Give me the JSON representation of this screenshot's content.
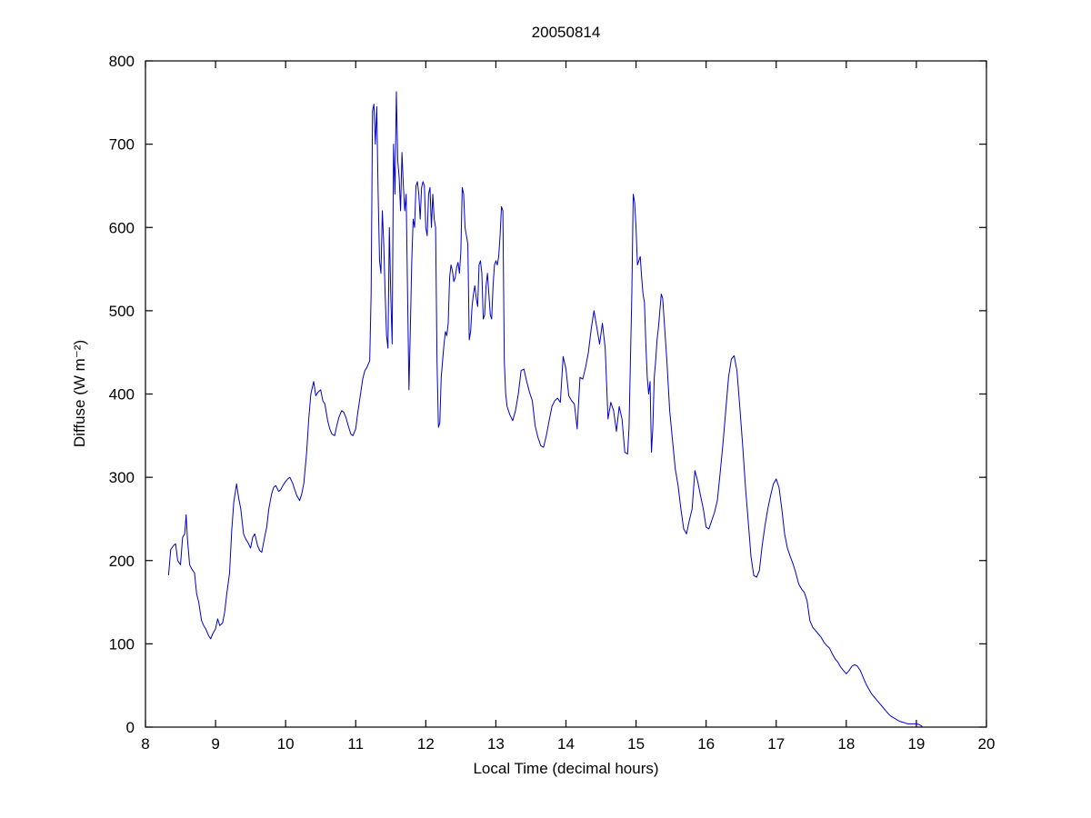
{
  "chart_data": {
    "type": "line",
    "title": "20050814",
    "xlabel": "Local Time (decimal hours)",
    "ylabel": "Diffuse (W m⁻²)",
    "xlim": [
      8,
      20
    ],
    "ylim": [
      0,
      800
    ],
    "xticks": [
      8,
      9,
      10,
      11,
      12,
      13,
      14,
      15,
      16,
      17,
      18,
      19,
      20
    ],
    "yticks": [
      0,
      100,
      200,
      300,
      400,
      500,
      600,
      700,
      800
    ],
    "grid": false,
    "legend": null,
    "line_color": "#0000CD",
    "axis_color": "#000000",
    "points": [
      [
        8.33,
        183
      ],
      [
        8.36,
        213
      ],
      [
        8.4,
        218
      ],
      [
        8.43,
        220
      ],
      [
        8.46,
        200
      ],
      [
        8.5,
        195
      ],
      [
        8.53,
        228
      ],
      [
        8.56,
        232
      ],
      [
        8.58,
        255
      ],
      [
        8.6,
        225
      ],
      [
        8.63,
        195
      ],
      [
        8.66,
        190
      ],
      [
        8.7,
        185
      ],
      [
        8.73,
        160
      ],
      [
        8.76,
        150
      ],
      [
        8.8,
        128
      ],
      [
        8.83,
        122
      ],
      [
        8.86,
        118
      ],
      [
        8.9,
        110
      ],
      [
        8.93,
        106
      ],
      [
        8.96,
        112
      ],
      [
        9.0,
        118
      ],
      [
        9.03,
        130
      ],
      [
        9.06,
        122
      ],
      [
        9.1,
        125
      ],
      [
        9.13,
        138
      ],
      [
        9.16,
        160
      ],
      [
        9.2,
        185
      ],
      [
        9.23,
        235
      ],
      [
        9.26,
        270
      ],
      [
        9.3,
        292
      ],
      [
        9.33,
        275
      ],
      [
        9.36,
        262
      ],
      [
        9.4,
        232
      ],
      [
        9.43,
        226
      ],
      [
        9.46,
        222
      ],
      [
        9.5,
        215
      ],
      [
        9.53,
        228
      ],
      [
        9.56,
        232
      ],
      [
        9.6,
        218
      ],
      [
        9.63,
        212
      ],
      [
        9.66,
        210
      ],
      [
        9.7,
        228
      ],
      [
        9.73,
        240
      ],
      [
        9.76,
        262
      ],
      [
        9.8,
        280
      ],
      [
        9.83,
        288
      ],
      [
        9.86,
        290
      ],
      [
        9.9,
        283
      ],
      [
        9.93,
        285
      ],
      [
        9.96,
        290
      ],
      [
        10.0,
        295
      ],
      [
        10.03,
        298
      ],
      [
        10.06,
        300
      ],
      [
        10.1,
        293
      ],
      [
        10.13,
        285
      ],
      [
        10.16,
        278
      ],
      [
        10.2,
        272
      ],
      [
        10.23,
        280
      ],
      [
        10.26,
        293
      ],
      [
        10.3,
        330
      ],
      [
        10.33,
        370
      ],
      [
        10.36,
        400
      ],
      [
        10.4,
        415
      ],
      [
        10.43,
        398
      ],
      [
        10.46,
        402
      ],
      [
        10.5,
        405
      ],
      [
        10.53,
        392
      ],
      [
        10.56,
        388
      ],
      [
        10.6,
        368
      ],
      [
        10.63,
        358
      ],
      [
        10.66,
        352
      ],
      [
        10.7,
        350
      ],
      [
        10.73,
        362
      ],
      [
        10.76,
        372
      ],
      [
        10.8,
        380
      ],
      [
        10.83,
        378
      ],
      [
        10.86,
        372
      ],
      [
        10.9,
        360
      ],
      [
        10.93,
        352
      ],
      [
        10.96,
        350
      ],
      [
        11.0,
        358
      ],
      [
        11.03,
        378
      ],
      [
        11.06,
        395
      ],
      [
        11.1,
        418
      ],
      [
        11.13,
        428
      ],
      [
        11.16,
        432
      ],
      [
        11.2,
        440
      ],
      [
        11.22,
        520
      ],
      [
        11.24,
        740
      ],
      [
        11.26,
        748
      ],
      [
        11.28,
        700
      ],
      [
        11.3,
        745
      ],
      [
        11.32,
        640
      ],
      [
        11.34,
        560
      ],
      [
        11.36,
        545
      ],
      [
        11.38,
        620
      ],
      [
        11.4,
        580
      ],
      [
        11.42,
        520
      ],
      [
        11.44,
        470
      ],
      [
        11.46,
        455
      ],
      [
        11.48,
        600
      ],
      [
        11.5,
        520
      ],
      [
        11.52,
        460
      ],
      [
        11.54,
        700
      ],
      [
        11.56,
        640
      ],
      [
        11.58,
        763
      ],
      [
        11.6,
        680
      ],
      [
        11.62,
        660
      ],
      [
        11.64,
        620
      ],
      [
        11.66,
        690
      ],
      [
        11.68,
        650
      ],
      [
        11.7,
        620
      ],
      [
        11.72,
        640
      ],
      [
        11.74,
        520
      ],
      [
        11.76,
        405
      ],
      [
        11.78,
        480
      ],
      [
        11.8,
        560
      ],
      [
        11.82,
        610
      ],
      [
        11.84,
        600
      ],
      [
        11.86,
        650
      ],
      [
        11.88,
        655
      ],
      [
        11.9,
        640
      ],
      [
        11.92,
        610
      ],
      [
        11.94,
        648
      ],
      [
        11.96,
        655
      ],
      [
        11.98,
        650
      ],
      [
        12.0,
        600
      ],
      [
        12.02,
        590
      ],
      [
        12.04,
        640
      ],
      [
        12.06,
        648
      ],
      [
        12.08,
        600
      ],
      [
        12.1,
        640
      ],
      [
        12.12,
        610
      ],
      [
        12.14,
        600
      ],
      [
        12.16,
        440
      ],
      [
        12.18,
        360
      ],
      [
        12.2,
        365
      ],
      [
        12.22,
        420
      ],
      [
        12.24,
        440
      ],
      [
        12.26,
        460
      ],
      [
        12.28,
        475
      ],
      [
        12.3,
        470
      ],
      [
        12.32,
        485
      ],
      [
        12.34,
        540
      ],
      [
        12.36,
        555
      ],
      [
        12.38,
        548
      ],
      [
        12.4,
        535
      ],
      [
        12.42,
        540
      ],
      [
        12.44,
        552
      ],
      [
        12.46,
        558
      ],
      [
        12.48,
        545
      ],
      [
        12.5,
        570
      ],
      [
        12.52,
        648
      ],
      [
        12.54,
        640
      ],
      [
        12.56,
        600
      ],
      [
        12.58,
        590
      ],
      [
        12.6,
        580
      ],
      [
        12.62,
        465
      ],
      [
        12.64,
        475
      ],
      [
        12.66,
        505
      ],
      [
        12.68,
        520
      ],
      [
        12.7,
        530
      ],
      [
        12.72,
        515
      ],
      [
        12.74,
        505
      ],
      [
        12.76,
        555
      ],
      [
        12.78,
        560
      ],
      [
        12.8,
        545
      ],
      [
        12.82,
        490
      ],
      [
        12.84,
        495
      ],
      [
        12.86,
        530
      ],
      [
        12.88,
        545
      ],
      [
        12.9,
        520
      ],
      [
        12.92,
        495
      ],
      [
        12.94,
        490
      ],
      [
        12.96,
        530
      ],
      [
        12.98,
        555
      ],
      [
        13.0,
        560
      ],
      [
        13.02,
        555
      ],
      [
        13.04,
        565
      ],
      [
        13.06,
        590
      ],
      [
        13.08,
        625
      ],
      [
        13.1,
        620
      ],
      [
        13.12,
        440
      ],
      [
        13.14,
        400
      ],
      [
        13.16,
        385
      ],
      [
        13.2,
        375
      ],
      [
        13.24,
        368
      ],
      [
        13.28,
        380
      ],
      [
        13.32,
        400
      ],
      [
        13.36,
        428
      ],
      [
        13.4,
        430
      ],
      [
        13.44,
        415
      ],
      [
        13.48,
        402
      ],
      [
        13.52,
        392
      ],
      [
        13.56,
        362
      ],
      [
        13.6,
        348
      ],
      [
        13.64,
        338
      ],
      [
        13.68,
        336
      ],
      [
        13.72,
        350
      ],
      [
        13.76,
        368
      ],
      [
        13.8,
        385
      ],
      [
        13.84,
        392
      ],
      [
        13.88,
        395
      ],
      [
        13.92,
        390
      ],
      [
        13.96,
        445
      ],
      [
        14.0,
        430
      ],
      [
        14.04,
        398
      ],
      [
        14.08,
        392
      ],
      [
        14.12,
        388
      ],
      [
        14.16,
        358
      ],
      [
        14.2,
        420
      ],
      [
        14.24,
        418
      ],
      [
        14.28,
        432
      ],
      [
        14.32,
        450
      ],
      [
        14.36,
        478
      ],
      [
        14.4,
        500
      ],
      [
        14.44,
        480
      ],
      [
        14.48,
        460
      ],
      [
        14.52,
        485
      ],
      [
        14.56,
        455
      ],
      [
        14.6,
        370
      ],
      [
        14.64,
        390
      ],
      [
        14.68,
        380
      ],
      [
        14.72,
        355
      ],
      [
        14.76,
        385
      ],
      [
        14.8,
        370
      ],
      [
        14.84,
        330
      ],
      [
        14.88,
        328
      ],
      [
        14.9,
        360
      ],
      [
        14.92,
        440
      ],
      [
        14.94,
        520
      ],
      [
        14.96,
        640
      ],
      [
        14.98,
        630
      ],
      [
        15.0,
        600
      ],
      [
        15.02,
        555
      ],
      [
        15.04,
        560
      ],
      [
        15.06,
        565
      ],
      [
        15.08,
        540
      ],
      [
        15.1,
        520
      ],
      [
        15.12,
        510
      ],
      [
        15.14,
        460
      ],
      [
        15.16,
        420
      ],
      [
        15.18,
        400
      ],
      [
        15.2,
        415
      ],
      [
        15.22,
        330
      ],
      [
        15.24,
        360
      ],
      [
        15.26,
        420
      ],
      [
        15.28,
        440
      ],
      [
        15.3,
        465
      ],
      [
        15.32,
        480
      ],
      [
        15.34,
        500
      ],
      [
        15.36,
        520
      ],
      [
        15.38,
        515
      ],
      [
        15.4,
        490
      ],
      [
        15.44,
        440
      ],
      [
        15.48,
        380
      ],
      [
        15.52,
        345
      ],
      [
        15.56,
        310
      ],
      [
        15.6,
        290
      ],
      [
        15.64,
        262
      ],
      [
        15.68,
        238
      ],
      [
        15.72,
        232
      ],
      [
        15.76,
        248
      ],
      [
        15.8,
        262
      ],
      [
        15.84,
        308
      ],
      [
        15.88,
        295
      ],
      [
        15.92,
        278
      ],
      [
        15.96,
        262
      ],
      [
        16.0,
        240
      ],
      [
        16.04,
        238
      ],
      [
        16.08,
        248
      ],
      [
        16.12,
        258
      ],
      [
        16.16,
        272
      ],
      [
        16.2,
        305
      ],
      [
        16.24,
        340
      ],
      [
        16.28,
        380
      ],
      [
        16.32,
        420
      ],
      [
        16.36,
        442
      ],
      [
        16.4,
        446
      ],
      [
        16.44,
        428
      ],
      [
        16.48,
        385
      ],
      [
        16.52,
        340
      ],
      [
        16.56,
        290
      ],
      [
        16.6,
        248
      ],
      [
        16.64,
        205
      ],
      [
        16.68,
        182
      ],
      [
        16.72,
        180
      ],
      [
        16.76,
        188
      ],
      [
        16.8,
        218
      ],
      [
        16.84,
        242
      ],
      [
        16.88,
        262
      ],
      [
        16.92,
        278
      ],
      [
        16.96,
        292
      ],
      [
        17.0,
        298
      ],
      [
        17.04,
        288
      ],
      [
        17.08,
        262
      ],
      [
        17.12,
        232
      ],
      [
        17.16,
        215
      ],
      [
        17.2,
        205
      ],
      [
        17.24,
        196
      ],
      [
        17.28,
        185
      ],
      [
        17.32,
        172
      ],
      [
        17.36,
        166
      ],
      [
        17.4,
        162
      ],
      [
        17.44,
        152
      ],
      [
        17.48,
        128
      ],
      [
        17.52,
        120
      ],
      [
        17.56,
        116
      ],
      [
        17.6,
        112
      ],
      [
        17.64,
        108
      ],
      [
        17.68,
        102
      ],
      [
        17.72,
        98
      ],
      [
        17.76,
        95
      ],
      [
        17.8,
        88
      ],
      [
        17.84,
        82
      ],
      [
        17.88,
        78
      ],
      [
        17.92,
        72
      ],
      [
        17.96,
        68
      ],
      [
        18.0,
        64
      ],
      [
        18.04,
        68
      ],
      [
        18.08,
        73
      ],
      [
        18.12,
        75
      ],
      [
        18.16,
        73
      ],
      [
        18.2,
        68
      ],
      [
        18.24,
        60
      ],
      [
        18.28,
        52
      ],
      [
        18.32,
        46
      ],
      [
        18.36,
        40
      ],
      [
        18.4,
        36
      ],
      [
        18.44,
        32
      ],
      [
        18.48,
        28
      ],
      [
        18.52,
        24
      ],
      [
        18.56,
        20
      ],
      [
        18.6,
        16
      ],
      [
        18.64,
        13
      ],
      [
        18.68,
        11
      ],
      [
        18.72,
        9
      ],
      [
        18.76,
        7
      ],
      [
        18.8,
        6
      ],
      [
        18.84,
        5
      ],
      [
        18.88,
        4
      ],
      [
        18.92,
        4
      ],
      [
        18.96,
        4
      ],
      [
        19.0,
        4
      ],
      [
        19.04,
        3
      ],
      [
        19.08,
        1
      ]
    ]
  }
}
